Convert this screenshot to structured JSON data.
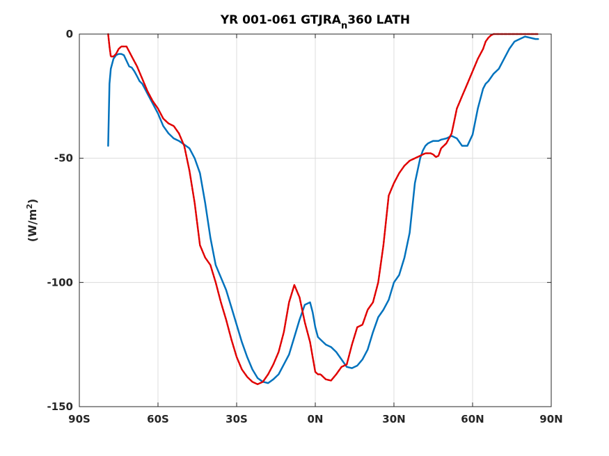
{
  "chart_data": {
    "type": "line",
    "title": "YR 001-061 GTJRA",
    "title_sub": "n",
    "title_suffix": "360 LATH",
    "xlabel": "",
    "ylabel_prefix": "(W/m",
    "ylabel_sup": "2",
    "ylabel_suffix": ")",
    "xlim": [
      -90,
      90
    ],
    "ylim": [
      -150,
      0
    ],
    "x_ticks": [
      -90,
      -60,
      -30,
      0,
      30,
      60,
      90
    ],
    "x_tick_labels": [
      "90S",
      "60S",
      "30S",
      "0N",
      "30N",
      "60N",
      "90N"
    ],
    "y_ticks": [
      0,
      -50,
      -100,
      -150
    ],
    "y_tick_labels": [
      "0",
      "-50",
      "-100",
      "-150"
    ],
    "grid": true,
    "series": [
      {
        "color": "#0072bd",
        "style": "solid",
        "x": [
          -79,
          -78.5,
          -78,
          -77,
          -76,
          -75,
          -74,
          -73,
          -71,
          -70,
          -69,
          -68,
          -67,
          -66,
          -65,
          -64,
          -62,
          -60,
          -58,
          -56,
          -54,
          -52,
          -50,
          -48,
          -46,
          -44,
          -42,
          -40,
          -38,
          -36,
          -34,
          -32,
          -30,
          -28,
          -26,
          -24,
          -22,
          -20,
          -18,
          -16,
          -14,
          -12,
          -10,
          -8,
          -6,
          -4,
          -2,
          -1,
          0,
          1,
          2,
          3,
          4,
          6,
          8,
          10,
          12,
          14,
          16,
          18,
          20,
          22,
          24,
          26,
          28,
          30,
          32,
          34,
          36,
          38,
          39,
          40,
          41,
          42,
          43,
          44,
          45,
          46,
          47,
          48,
          50,
          52,
          54,
          56,
          58,
          60,
          62,
          64,
          65,
          66,
          67,
          68,
          70,
          72,
          74,
          76,
          78,
          80,
          82,
          84,
          85
        ],
        "y": [
          -45,
          -20,
          -14,
          -10,
          -8.5,
          -8,
          -8,
          -8.5,
          -13,
          -13.5,
          -15,
          -17,
          -19,
          -20,
          -22,
          -24,
          -28,
          -32,
          -37,
          -40,
          -42,
          -43,
          -44.5,
          -46,
          -50,
          -56,
          -68,
          -82,
          -93,
          -98,
          -103,
          -110,
          -117,
          -124,
          -130,
          -135,
          -138.5,
          -140,
          -140.5,
          -139,
          -137,
          -133,
          -129,
          -122,
          -115,
          -109,
          -108,
          -112,
          -118,
          -122,
          -123,
          -124,
          -125,
          -126,
          -128,
          -131,
          -134,
          -134.5,
          -133.5,
          -131,
          -127,
          -120,
          -114,
          -111,
          -107,
          -100,
          -97,
          -90,
          -80,
          -60,
          -55,
          -50,
          -47,
          -45,
          -44,
          -43.5,
          -43,
          -43,
          -43,
          -42.5,
          -42,
          -41,
          -42,
          -45,
          -45,
          -40.5,
          -30,
          -22,
          -20,
          -19,
          -17.5,
          -16,
          -14,
          -10,
          -6,
          -3,
          -2,
          -1,
          -1.5,
          -2,
          -2
        ],
        "name": ""
      },
      {
        "color": "#e00000",
        "style": "dashed",
        "x": [
          -79,
          -78.5,
          -78,
          -77,
          -76,
          -75,
          -74,
          -73,
          -72,
          -70,
          -68,
          -66,
          -64,
          -62,
          -60,
          -58,
          -56,
          -54,
          -52,
          -50,
          -48,
          -46,
          -44,
          -42,
          -40,
          -38,
          -36,
          -34,
          -32,
          -30,
          -28,
          -26,
          -24,
          -22,
          -20,
          -18,
          -16,
          -14,
          -12,
          -10,
          -8,
          -6,
          -4,
          -2,
          -1,
          0,
          1,
          2,
          3,
          4,
          6,
          8,
          10,
          12,
          14,
          16,
          18,
          20,
          22,
          24,
          26,
          28,
          30,
          32,
          34,
          36,
          38,
          39,
          40,
          41,
          42,
          43,
          44,
          45,
          46,
          47,
          48,
          50,
          52,
          54,
          56,
          58,
          60,
          62,
          64,
          65,
          66,
          67,
          68,
          70,
          72,
          74,
          76,
          78,
          80,
          82,
          84,
          85
        ],
        "y": [
          0,
          -5,
          -9,
          -9,
          -8,
          -6,
          -5,
          -5,
          -5,
          -9,
          -13,
          -18,
          -23,
          -27,
          -30,
          -34,
          -36,
          -37,
          -40,
          -45,
          -55,
          -68,
          -85,
          -90,
          -93,
          -100,
          -108,
          -115,
          -123,
          -130,
          -135,
          -138,
          -140,
          -141,
          -140,
          -137,
          -133,
          -128,
          -120,
          -108,
          -101,
          -106,
          -116,
          -124,
          -130,
          -136,
          -137,
          -137,
          -138,
          -139,
          -139.5,
          -137,
          -134,
          -133,
          -125,
          -118,
          -117,
          -111,
          -108,
          -100,
          -85,
          -65,
          -60,
          -56,
          -53,
          -51,
          -50,
          -49.5,
          -49,
          -48.5,
          -48,
          -48,
          -48,
          -48.5,
          -49.5,
          -49,
          -46,
          -44,
          -40,
          -30,
          -25,
          -20,
          -15,
          -10,
          -6,
          -3,
          -1.5,
          -0.5,
          0,
          0,
          0,
          0,
          0,
          0,
          0,
          0,
          0,
          0
        ],
        "name": ""
      }
    ]
  }
}
